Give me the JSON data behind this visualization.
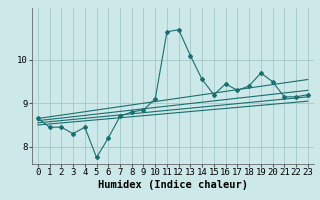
{
  "xlabel": "Humidex (Indice chaleur)",
  "bg_color": "#cce8e8",
  "grid_color": "#aacccc",
  "line_color": "#1a6e6e",
  "xlim": [
    -0.5,
    23.5
  ],
  "ylim": [
    7.6,
    11.2
  ],
  "yticks": [
    8,
    9,
    10
  ],
  "xticks": [
    0,
    1,
    2,
    3,
    4,
    5,
    6,
    7,
    8,
    9,
    10,
    11,
    12,
    13,
    14,
    15,
    16,
    17,
    18,
    19,
    20,
    21,
    22,
    23
  ],
  "curve1_x": [
    0,
    1,
    2,
    3,
    4,
    5,
    6,
    7,
    8,
    9,
    10,
    11,
    12,
    13,
    14,
    15,
    16,
    17,
    18,
    19,
    20,
    21,
    22,
    23
  ],
  "curve1_y": [
    8.65,
    8.45,
    8.45,
    8.3,
    8.45,
    7.75,
    8.2,
    8.7,
    8.8,
    8.85,
    9.1,
    10.65,
    10.7,
    10.1,
    9.55,
    9.2,
    9.45,
    9.3,
    9.4,
    9.7,
    9.5,
    9.15,
    9.15,
    9.2
  ],
  "line1_x": [
    0,
    23
  ],
  "line1_y": [
    8.5,
    9.05
  ],
  "line2_x": [
    0,
    23
  ],
  "line2_y": [
    8.55,
    9.15
  ],
  "line3_x": [
    0,
    23
  ],
  "line3_y": [
    8.6,
    9.3
  ],
  "line4_x": [
    0,
    23
  ],
  "line4_y": [
    8.65,
    9.55
  ],
  "tick_fontsize": 6.5,
  "xlabel_fontsize": 7.5
}
